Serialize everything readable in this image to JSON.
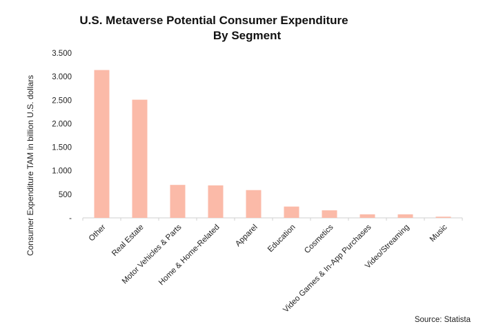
{
  "chart_data": {
    "type": "bar",
    "title_lines": [
      "U.S. Metaverse Potential Consumer Expenditure",
      "By Segment"
    ],
    "ylabel": "Consumer Expenditure TAM in billion U.S. dollars",
    "xlabel": "",
    "source": "Source: Statista",
    "ylim": [
      0,
      3500
    ],
    "yticks": [
      0,
      500,
      1000,
      1500,
      2000,
      2500,
      3000,
      3500
    ],
    "ytick_labels": [
      "-",
      "500",
      "1.000",
      "1.500",
      "2.000",
      "2.500",
      "3.000",
      "3.500"
    ],
    "categories": [
      "Other",
      "Real Estate",
      "Motor Vehicles & Parts",
      "Home & Home-Related",
      "Apparel",
      "Education",
      "Cosmetics",
      "Video Games & In-App Purchases",
      "Video/Streaming",
      "Music"
    ],
    "values": [
      3140,
      2510,
      700,
      690,
      590,
      240,
      160,
      75,
      75,
      25
    ],
    "grid": false,
    "bar_color": "#fbbaa8"
  }
}
